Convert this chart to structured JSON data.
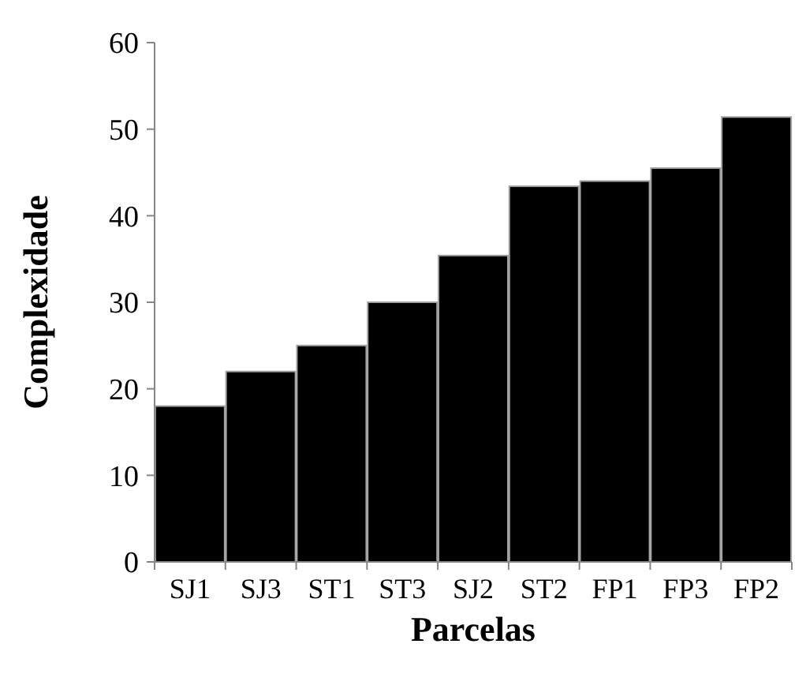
{
  "chart_data": {
    "type": "bar",
    "xlabel": "Parcelas",
    "ylabel": "Complexidade",
    "categories": [
      "SJ1",
      "SJ3",
      "ST1",
      "ST3",
      "SJ2",
      "ST2",
      "FP1",
      "FP3",
      "FP2"
    ],
    "values": [
      18,
      22,
      25,
      30,
      35.4,
      43.4,
      44,
      45.5,
      51.4
    ],
    "color": "#000000",
    "ylim": [
      0,
      60
    ],
    "yticks": [
      0,
      10,
      20,
      30,
      40,
      50,
      60
    ]
  }
}
